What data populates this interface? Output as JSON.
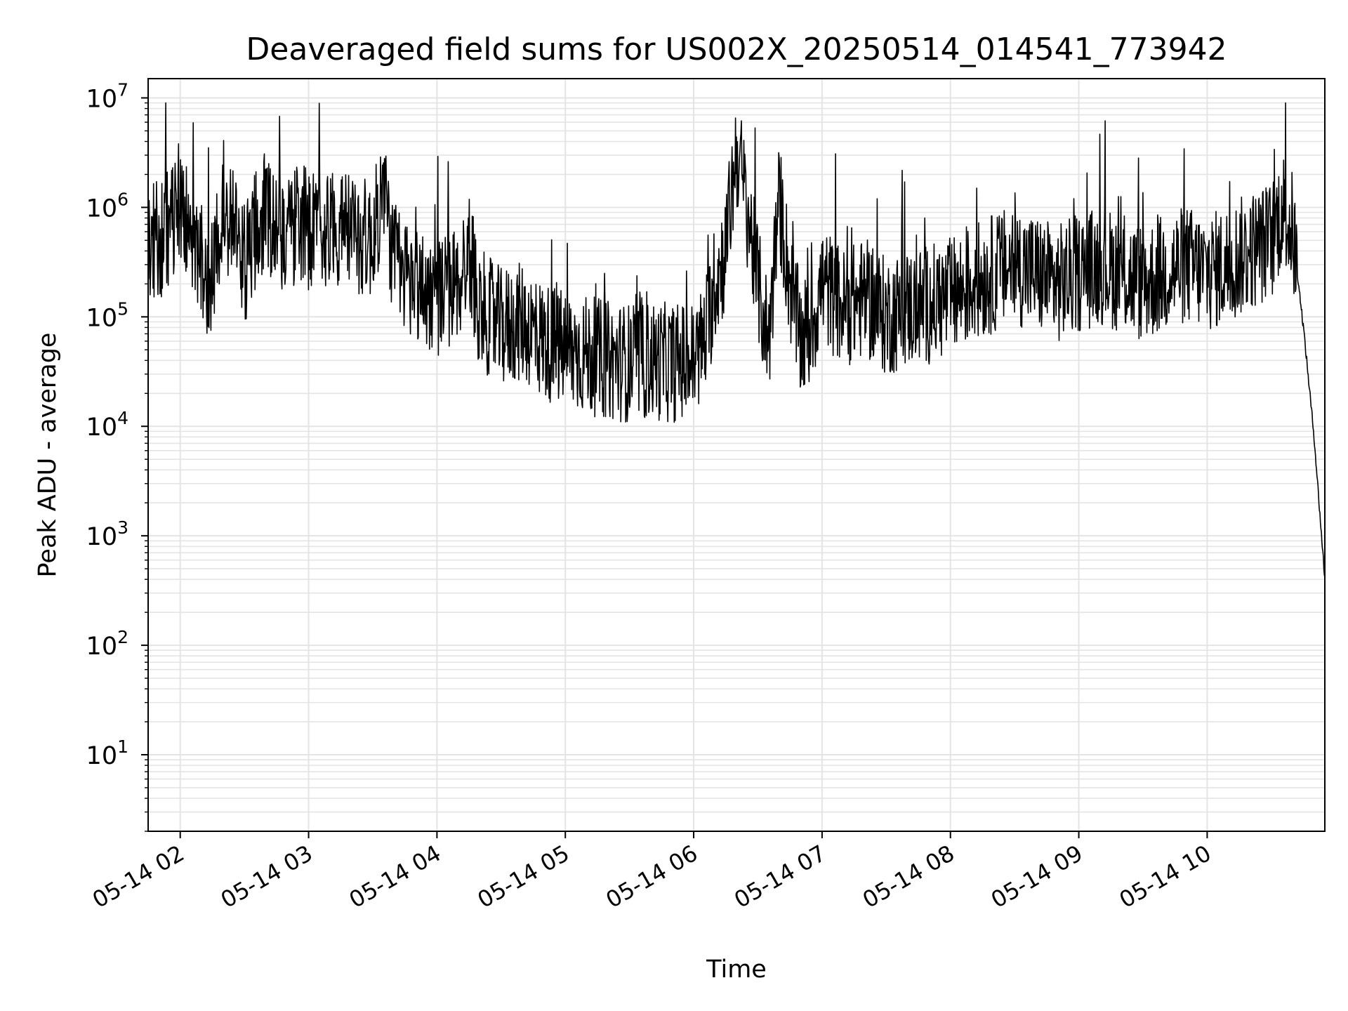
{
  "chart_data": {
    "type": "line",
    "title": "Deaveraged field sums for US002X_20250514_014541_773942",
    "xlabel": "Time",
    "ylabel": "Peak ADU - average",
    "yscale": "log",
    "ylim": [
      2,
      15000000
    ],
    "xlim": [
      "2025-05-14 01:45",
      "2025-05-14 10:55"
    ],
    "x_tick_labels": [
      "05-14 02",
      "05-14 03",
      "05-14 04",
      "05-14 05",
      "05-14 06",
      "05-14 07",
      "05-14 08",
      "05-14 09",
      "05-14 10"
    ],
    "y_tick_labels": [
      {
        "base": "10",
        "exp": "1"
      },
      {
        "base": "10",
        "exp": "2"
      },
      {
        "base": "10",
        "exp": "3"
      },
      {
        "base": "10",
        "exp": "4"
      },
      {
        "base": "10",
        "exp": "5"
      },
      {
        "base": "10",
        "exp": "6"
      },
      {
        "base": "10",
        "exp": "7"
      }
    ],
    "grid": true,
    "line_color": "#000000",
    "series": [
      {
        "x": [
          "2025-05-14 01:45",
          "2025-05-14 01:50",
          "2025-05-14 01:55",
          "2025-05-14 02:00",
          "2025-05-14 02:05",
          "2025-05-14 02:10",
          "2025-05-14 02:15",
          "2025-05-14 02:20",
          "2025-05-14 02:25",
          "2025-05-14 02:30",
          "2025-05-14 02:35",
          "2025-05-14 02:40",
          "2025-05-14 02:45",
          "2025-05-14 02:50",
          "2025-05-14 02:55",
          "2025-05-14 03:00",
          "2025-05-14 03:10",
          "2025-05-14 03:20",
          "2025-05-14 03:30",
          "2025-05-14 03:35",
          "2025-05-14 03:40",
          "2025-05-14 03:50",
          "2025-05-14 04:00",
          "2025-05-14 04:10",
          "2025-05-14 04:15",
          "2025-05-14 04:20",
          "2025-05-14 04:30",
          "2025-05-14 04:40",
          "2025-05-14 04:50",
          "2025-05-14 05:00",
          "2025-05-14 05:10",
          "2025-05-14 05:20",
          "2025-05-14 05:30",
          "2025-05-14 05:40",
          "2025-05-14 05:50",
          "2025-05-14 06:00",
          "2025-05-14 06:05",
          "2025-05-14 06:10",
          "2025-05-14 06:15",
          "2025-05-14 06:20",
          "2025-05-14 06:25",
          "2025-05-14 06:30",
          "2025-05-14 06:35",
          "2025-05-14 06:40",
          "2025-05-14 06:45",
          "2025-05-14 06:50",
          "2025-05-14 06:55",
          "2025-05-14 07:00",
          "2025-05-14 07:10",
          "2025-05-14 07:20",
          "2025-05-14 07:30",
          "2025-05-14 07:40",
          "2025-05-14 07:50",
          "2025-05-14 08:00",
          "2025-05-14 08:10",
          "2025-05-14 08:20",
          "2025-05-14 08:30",
          "2025-05-14 08:40",
          "2025-05-14 08:50",
          "2025-05-14 09:00",
          "2025-05-14 09:10",
          "2025-05-14 09:20",
          "2025-05-14 09:30",
          "2025-05-14 09:40",
          "2025-05-14 09:50",
          "2025-05-14 10:00",
          "2025-05-14 10:10",
          "2025-05-14 10:15",
          "2025-05-14 10:20",
          "2025-05-14 10:25",
          "2025-05-14 10:30",
          "2025-05-14 10:35",
          "2025-05-14 10:40",
          "2025-05-14 10:45",
          "2025-05-14 10:50",
          "2025-05-14 10:55"
        ],
        "y": [
          450000,
          500000,
          650000,
          1300000,
          500000,
          300000,
          200000,
          1000000,
          700000,
          300000,
          600000,
          900000,
          700000,
          500000,
          800000,
          600000,
          700000,
          600000,
          500000,
          1500000,
          300000,
          200000,
          150000,
          200000,
          400000,
          120000,
          80000,
          90000,
          60000,
          50000,
          45000,
          40000,
          38000,
          40000,
          38000,
          40000,
          60000,
          200000,
          400000,
          3500000,
          1000000,
          200000,
          60000,
          1200000,
          200000,
          60000,
          80000,
          200000,
          120000,
          150000,
          100000,
          120000,
          130000,
          150000,
          200000,
          250000,
          300000,
          250000,
          200000,
          250000,
          300000,
          250000,
          200000,
          250000,
          300000,
          250000,
          300000,
          350000,
          400000,
          450000,
          500000,
          1000000,
          600000,
          80000,
          8000,
          400
        ]
      }
    ]
  }
}
